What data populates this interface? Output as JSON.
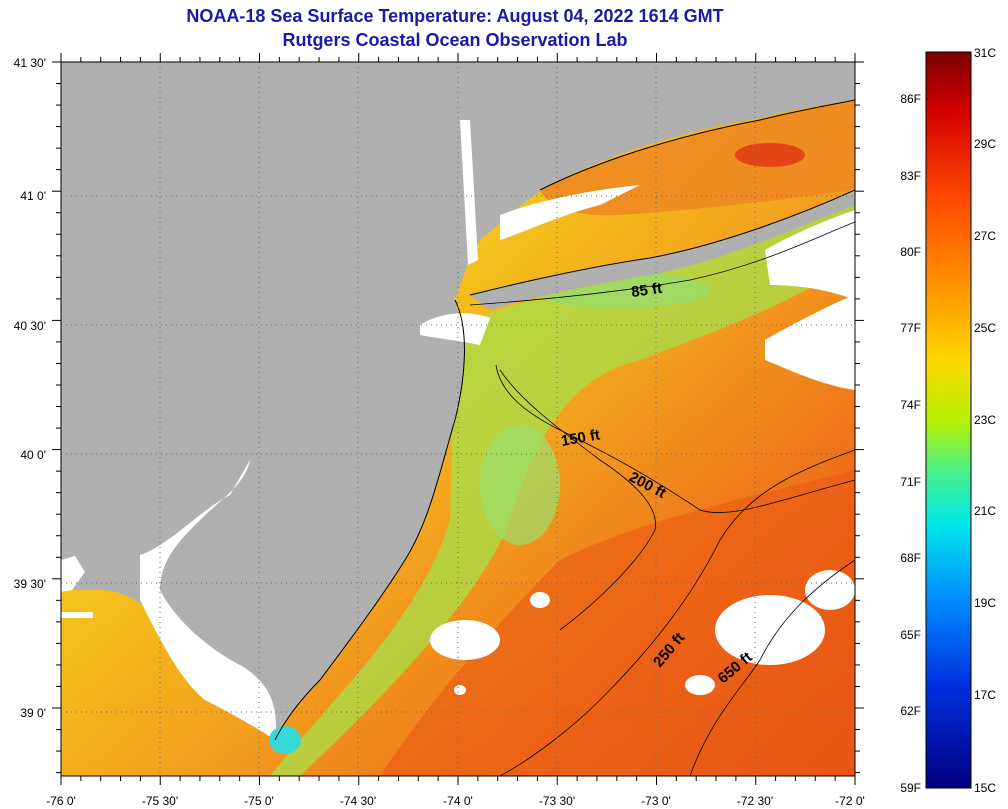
{
  "title": "NOAA-18 Sea Surface Temperature:  August 04, 2022 1614 GMT",
  "subtitle": "Rutgers Coastal Ocean Observation Lab",
  "lat_labels": [
    "41 30'",
    "41 0'",
    "40 30'",
    "40 0'",
    "39 30'",
    "39 0'"
  ],
  "lon_labels": [
    "-76 0'",
    "-75 30'",
    "-75 0'",
    "-74 30'",
    "-74 0'",
    "-73 30'",
    "-73 0'",
    "-72 30'",
    "-72 0'"
  ],
  "contour_labels": [
    "85 ft",
    "150 ft",
    "200 ft",
    "250 ft",
    "650 ft"
  ],
  "colorbar": {
    "fahrenheit": [
      "86F",
      "83F",
      "80F",
      "77F",
      "74F",
      "71F",
      "68F",
      "65F",
      "62F",
      "59F"
    ],
    "celsius": [
      "31C",
      "29C",
      "27C",
      "25C",
      "23C",
      "21C",
      "19C",
      "17C",
      "15C"
    ]
  },
  "colors": {
    "land": "#b0b0b0",
    "title": "#1a1aa8",
    "no_data": "#ffffff"
  }
}
